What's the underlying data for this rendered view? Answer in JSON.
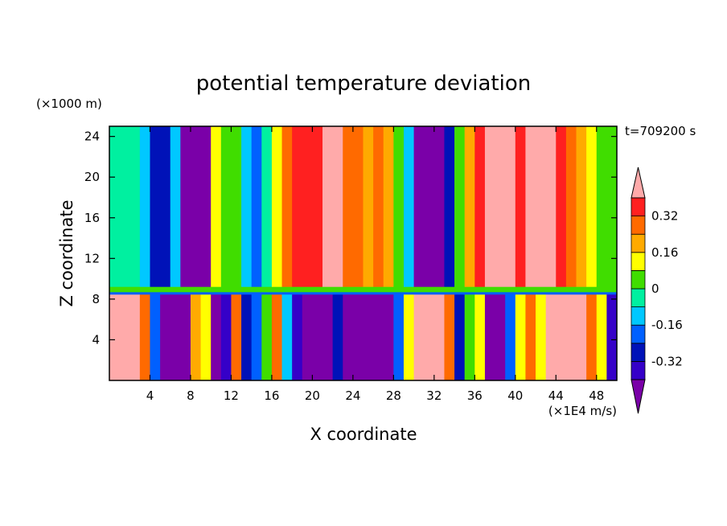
{
  "chart_data": {
    "type": "heatmap",
    "title": "potential temperature deviation",
    "xlabel": "X coordinate",
    "ylabel": "Z coordinate",
    "x_unit": "(×1E4 m/s)",
    "y_unit": "(×1000 m)",
    "time_label": "t=709200 s",
    "xlim": [
      0,
      50
    ],
    "ylim": [
      0,
      25
    ],
    "x_ticks": [
      4,
      8,
      12,
      16,
      20,
      24,
      28,
      32,
      36,
      40,
      44,
      48
    ],
    "y_ticks": [
      4,
      8,
      12,
      16,
      20,
      24
    ],
    "colorbar": {
      "levels": [
        -0.4,
        -0.32,
        -0.24,
        -0.16,
        -0.08,
        0,
        0.08,
        0.16,
        0.24,
        0.32,
        0.4
      ],
      "tick_labels": [
        "0.32",
        "0.16",
        "0",
        "-0.16",
        "-0.32"
      ],
      "tick_values": [
        0.32,
        0.16,
        0,
        -0.16,
        -0.32
      ],
      "colors": [
        "#7a00a8",
        "#3500c8",
        "#0012b8",
        "#0060ff",
        "#00c8ff",
        "#00f0a0",
        "#40dd00",
        "#ffff00",
        "#ffaa00",
        "#ff6a00",
        "#ff2020",
        "#ffaaaa"
      ]
    },
    "upper_layer_columns": [
      {
        "x": 0.5,
        "value": -0.02
      },
      {
        "x": 1.5,
        "value": -0.03
      },
      {
        "x": 2.5,
        "value": -0.06
      },
      {
        "x": 3.5,
        "value": -0.1
      },
      {
        "x": 4.5,
        "value": -0.3
      },
      {
        "x": 5.5,
        "value": -0.26
      },
      {
        "x": 6.5,
        "value": -0.12
      },
      {
        "x": 7.5,
        "value": -0.42
      },
      {
        "x": 8.5,
        "value": -0.45
      },
      {
        "x": 9.5,
        "value": -0.42
      },
      {
        "x": 10.5,
        "value": 0.1
      },
      {
        "x": 11.5,
        "value": 0.06
      },
      {
        "x": 12.5,
        "value": 0.0
      },
      {
        "x": 13.5,
        "value": -0.1
      },
      {
        "x": 14.5,
        "value": -0.2
      },
      {
        "x": 15.5,
        "value": -0.08
      },
      {
        "x": 16.5,
        "value": 0.12
      },
      {
        "x": 17.5,
        "value": 0.26
      },
      {
        "x": 18.5,
        "value": 0.34
      },
      {
        "x": 19.5,
        "value": 0.34
      },
      {
        "x": 20.5,
        "value": 0.38
      },
      {
        "x": 21.5,
        "value": 0.42
      },
      {
        "x": 22.5,
        "value": 0.4
      },
      {
        "x": 23.5,
        "value": 0.3
      },
      {
        "x": 24.5,
        "value": 0.24
      },
      {
        "x": 25.5,
        "value": 0.2
      },
      {
        "x": 26.5,
        "value": 0.26
      },
      {
        "x": 27.5,
        "value": 0.18
      },
      {
        "x": 28.5,
        "value": 0.04
      },
      {
        "x": 29.5,
        "value": -0.14
      },
      {
        "x": 30.5,
        "value": -0.42
      },
      {
        "x": 31.5,
        "value": -0.45
      },
      {
        "x": 32.5,
        "value": -0.45
      },
      {
        "x": 33.5,
        "value": -0.3
      },
      {
        "x": 34.5,
        "value": 0.02
      },
      {
        "x": 35.5,
        "value": 0.2
      },
      {
        "x": 36.5,
        "value": 0.34
      },
      {
        "x": 37.5,
        "value": 0.4
      },
      {
        "x": 38.5,
        "value": 0.42
      },
      {
        "x": 39.5,
        "value": 0.42
      },
      {
        "x": 40.5,
        "value": 0.38
      },
      {
        "x": 41.5,
        "value": 0.4
      },
      {
        "x": 42.5,
        "value": 0.42
      },
      {
        "x": 43.5,
        "value": 0.4
      },
      {
        "x": 44.5,
        "value": 0.34
      },
      {
        "x": 45.5,
        "value": 0.26
      },
      {
        "x": 46.5,
        "value": 0.18
      },
      {
        "x": 47.5,
        "value": 0.1
      },
      {
        "x": 48.5,
        "value": 0.04
      },
      {
        "x": 49.5,
        "value": 0.0
      }
    ],
    "lower_layer_columns": [
      {
        "x": 0.5,
        "value": 0.45
      },
      {
        "x": 1.5,
        "value": 0.45
      },
      {
        "x": 2.5,
        "value": 0.4
      },
      {
        "x": 3.5,
        "value": 0.3
      },
      {
        "x": 4.5,
        "value": -0.2
      },
      {
        "x": 5.5,
        "value": -0.44
      },
      {
        "x": 6.5,
        "value": -0.45
      },
      {
        "x": 7.5,
        "value": -0.42
      },
      {
        "x": 8.5,
        "value": 0.2
      },
      {
        "x": 9.5,
        "value": 0.1
      },
      {
        "x": 10.5,
        "value": -0.45
      },
      {
        "x": 11.5,
        "value": -0.4
      },
      {
        "x": 12.5,
        "value": 0.3
      },
      {
        "x": 13.5,
        "value": -0.3
      },
      {
        "x": 14.5,
        "value": -0.2
      },
      {
        "x": 15.5,
        "value": 0.0
      },
      {
        "x": 16.5,
        "value": 0.3
      },
      {
        "x": 17.5,
        "value": -0.1
      },
      {
        "x": 18.5,
        "value": -0.4
      },
      {
        "x": 19.5,
        "value": -0.44
      },
      {
        "x": 20.5,
        "value": -0.45
      },
      {
        "x": 21.5,
        "value": -0.45
      },
      {
        "x": 22.5,
        "value": -0.3
      },
      {
        "x": 23.5,
        "value": -0.45
      },
      {
        "x": 24.5,
        "value": -0.45
      },
      {
        "x": 25.5,
        "value": -0.44
      },
      {
        "x": 26.5,
        "value": -0.45
      },
      {
        "x": 27.5,
        "value": -0.45
      },
      {
        "x": 28.5,
        "value": -0.2
      },
      {
        "x": 29.5,
        "value": 0.1
      },
      {
        "x": 30.5,
        "value": 0.4
      },
      {
        "x": 31.5,
        "value": 0.45
      },
      {
        "x": 32.5,
        "value": 0.45
      },
      {
        "x": 33.5,
        "value": 0.3
      },
      {
        "x": 34.5,
        "value": -0.3
      },
      {
        "x": 35.5,
        "value": 0.0
      },
      {
        "x": 36.5,
        "value": 0.1
      },
      {
        "x": 37.5,
        "value": -0.45
      },
      {
        "x": 38.5,
        "value": -0.45
      },
      {
        "x": 39.5,
        "value": -0.2
      },
      {
        "x": 40.5,
        "value": 0.1
      },
      {
        "x": 41.5,
        "value": 0.3
      },
      {
        "x": 42.5,
        "value": 0.1
      },
      {
        "x": 43.5,
        "value": 0.4
      },
      {
        "x": 44.5,
        "value": 0.45
      },
      {
        "x": 45.5,
        "value": 0.45
      },
      {
        "x": 46.5,
        "value": 0.42
      },
      {
        "x": 47.5,
        "value": 0.3
      },
      {
        "x": 48.5,
        "value": 0.1
      },
      {
        "x": 49.5,
        "value": -0.4
      }
    ],
    "layer_interface_z": 8.6
  }
}
